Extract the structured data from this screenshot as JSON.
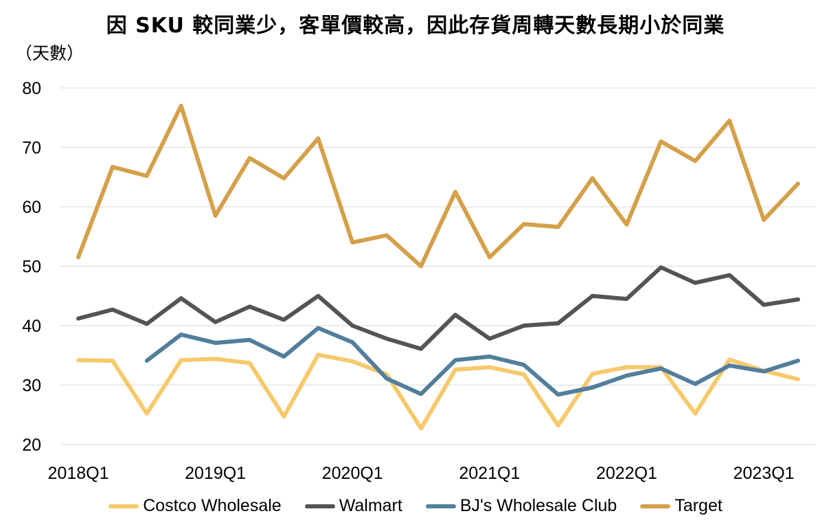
{
  "chart_data": {
    "type": "line",
    "title": "因 SKU 較同業少，客單價較高，因此存貨周轉天數長期小於同業",
    "ylabel": "（天數）",
    "xlabel": "",
    "ylim": [
      20,
      80
    ],
    "yticks": [
      20,
      30,
      40,
      50,
      60,
      70,
      80
    ],
    "grid": true,
    "legend_position": "bottom",
    "categories": [
      "2018Q1",
      "2018Q2",
      "2018Q3",
      "2018Q4",
      "2019Q1",
      "2019Q2",
      "2019Q3",
      "2019Q4",
      "2020Q1",
      "2020Q2",
      "2020Q3",
      "2020Q4",
      "2021Q1",
      "2021Q2",
      "2021Q3",
      "2021Q4",
      "2022Q1",
      "2022Q2",
      "2022Q3",
      "2022Q4",
      "2023Q1",
      "2023Q2"
    ],
    "xtick_labels": [
      "2018Q1",
      "2019Q1",
      "2020Q1",
      "2021Q1",
      "2022Q1",
      "2023Q1"
    ],
    "series": [
      {
        "name": "Costco Wholesale",
        "color": "#f6c96b",
        "values": [
          34.2,
          34.1,
          25.2,
          34.2,
          34.4,
          33.7,
          24.7,
          35.1,
          34.0,
          31.8,
          22.7,
          32.6,
          33.0,
          31.8,
          23.2,
          31.9,
          33.0,
          33.0,
          25.2,
          34.3,
          32.4,
          31.0
        ]
      },
      {
        "name": "Walmart",
        "color": "#545454",
        "values": [
          41.2,
          42.7,
          40.3,
          44.6,
          40.6,
          43.2,
          41.0,
          45.0,
          40.0,
          37.8,
          36.1,
          41.8,
          37.8,
          40.0,
          40.4,
          45.0,
          44.5,
          49.8,
          47.2,
          48.5,
          43.5,
          44.4
        ]
      },
      {
        "name": "BJ's Wholesale Club",
        "color": "#527e9c",
        "values": [
          null,
          null,
          34.1,
          38.5,
          37.1,
          37.6,
          34.8,
          39.6,
          37.2,
          31.1,
          28.5,
          34.2,
          34.8,
          33.4,
          28.4,
          29.6,
          31.6,
          32.8,
          30.2,
          33.3,
          32.3,
          34.1
        ]
      },
      {
        "name": "Target",
        "color": "#d4a04a",
        "values": [
          51.5,
          66.7,
          65.2,
          77.0,
          58.5,
          68.2,
          64.8,
          71.5,
          54.0,
          55.2,
          50.0,
          62.5,
          51.5,
          57.1,
          56.6,
          64.8,
          57.0,
          71.0,
          67.7,
          74.5,
          57.8,
          63.9
        ]
      }
    ]
  }
}
